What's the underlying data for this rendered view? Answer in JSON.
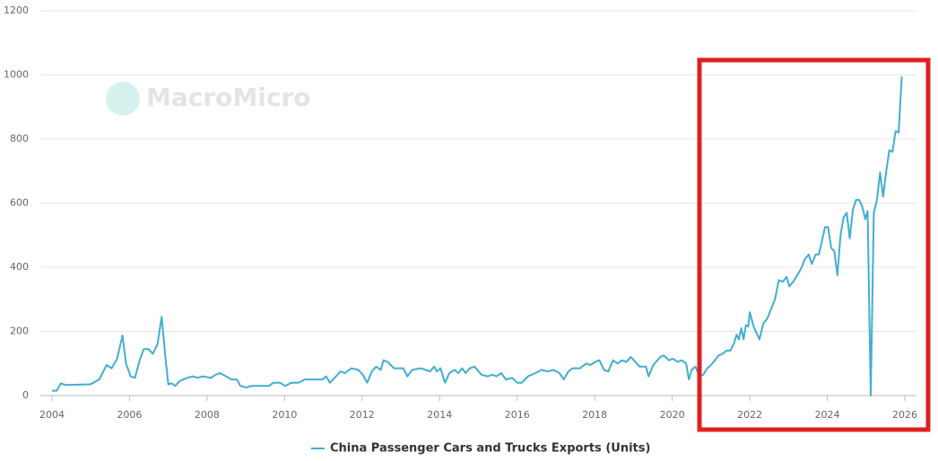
{
  "chart_data": {
    "type": "line",
    "watermark": "MacroMicro",
    "x": [
      2004.0,
      2004.12,
      2004.23,
      2004.35,
      2004.99,
      2005.22,
      2005.41,
      2005.54,
      2005.68,
      2005.82,
      2005.91,
      2006.03,
      2006.14,
      2006.26,
      2006.37,
      2006.49,
      2006.6,
      2006.72,
      2006.83,
      2006.93,
      2007.0,
      2007.09,
      2007.18,
      2007.29,
      2007.48,
      2007.64,
      2007.76,
      2007.89,
      2008.1,
      2008.22,
      2008.33,
      2008.49,
      2008.63,
      2008.77,
      2008.86,
      2009.02,
      2009.14,
      2009.6,
      2009.71,
      2009.88,
      2010.01,
      2010.18,
      2010.36,
      2010.52,
      2010.98,
      2011.07,
      2011.17,
      2011.33,
      2011.44,
      2011.56,
      2011.72,
      2011.9,
      2012.02,
      2012.13,
      2012.25,
      2012.36,
      2012.48,
      2012.55,
      2012.66,
      2012.82,
      2013.06,
      2013.17,
      2013.29,
      2013.52,
      2013.75,
      2013.86,
      2013.93,
      2014.02,
      2014.14,
      2014.25,
      2014.39,
      2014.48,
      2014.58,
      2014.67,
      2014.78,
      2014.9,
      2015.08,
      2015.24,
      2015.36,
      2015.47,
      2015.59,
      2015.71,
      2015.87,
      2016.0,
      2016.12,
      2016.28,
      2016.47,
      2016.63,
      2016.79,
      2016.93,
      2017.09,
      2017.2,
      2017.32,
      2017.43,
      2017.62,
      2017.78,
      2017.89,
      2018.01,
      2018.12,
      2018.24,
      2018.35,
      2018.47,
      2018.59,
      2018.7,
      2018.82,
      2018.93,
      2019.05,
      2019.16,
      2019.32,
      2019.39,
      2019.51,
      2019.69,
      2019.78,
      2019.92,
      2020.01,
      2020.15,
      2020.24,
      2020.36,
      2020.43,
      2020.5,
      2020.6,
      2020.7,
      2020.8,
      2020.9,
      2021.0,
      2021.1,
      2021.2,
      2021.3,
      2021.4,
      2021.5,
      2021.6,
      2021.66,
      2021.72,
      2021.78,
      2021.84,
      2021.9,
      2021.96,
      2022.0,
      2022.1,
      2022.25,
      2022.35,
      2022.45,
      2022.55,
      2022.65,
      2022.75,
      2022.85,
      2022.95,
      2023.02,
      2023.12,
      2023.22,
      2023.32,
      2023.42,
      2023.52,
      2023.6,
      2023.7,
      2023.78,
      2023.86,
      2023.94,
      2024.02,
      2024.1,
      2024.18,
      2024.26,
      2024.34,
      2024.42,
      2024.5,
      2024.58,
      2024.66,
      2024.74,
      2024.82,
      2024.9,
      2024.98,
      2025.04,
      2025.12,
      2025.2,
      2025.28,
      2025.36,
      2025.44,
      2025.52,
      2025.6,
      2025.68,
      2025.76,
      2025.84,
      2025.92
    ],
    "series": [
      {
        "name": "China Passenger Cars and Trucks Exports (Units)",
        "color": "#41aed0",
        "values": [
          15,
          15,
          38,
          33,
          35,
          50,
          95,
          85,
          115,
          187,
          100,
          60,
          55,
          110,
          145,
          145,
          130,
          160,
          245,
          115,
          35,
          38,
          30,
          45,
          55,
          60,
          55,
          60,
          55,
          65,
          70,
          60,
          50,
          50,
          30,
          25,
          30,
          30,
          40,
          40,
          30,
          40,
          40,
          50,
          50,
          60,
          40,
          60,
          75,
          70,
          85,
          80,
          65,
          40,
          75,
          90,
          80,
          110,
          105,
          85,
          85,
          60,
          80,
          85,
          75,
          90,
          75,
          85,
          40,
          70,
          80,
          70,
          85,
          70,
          85,
          90,
          65,
          60,
          65,
          60,
          70,
          50,
          55,
          40,
          40,
          60,
          70,
          80,
          75,
          80,
          70,
          50,
          75,
          85,
          85,
          100,
          95,
          105,
          110,
          80,
          75,
          110,
          100,
          110,
          105,
          120,
          105,
          90,
          90,
          60,
          95,
          120,
          125,
          110,
          115,
          105,
          110,
          100,
          50,
          80,
          90,
          60,
          65,
          85,
          95,
          110,
          125,
          130,
          140,
          140,
          165,
          190,
          175,
          210,
          175,
          220,
          215,
          260,
          215,
          175,
          225,
          240,
          270,
          300,
          360,
          355,
          370,
          340,
          355,
          375,
          395,
          425,
          440,
          410,
          440,
          440,
          480,
          525,
          525,
          460,
          450,
          375,
          500,
          555,
          570,
          490,
          580,
          610,
          610,
          590,
          550,
          575,
          0,
          570,
          610,
          695,
          620,
          700,
          765,
          760,
          825,
          820,
          995
        ]
      }
    ],
    "xlim": [
      2003.7,
      2026.3
    ],
    "xticks": [
      2004,
      2006,
      2008,
      2010,
      2012,
      2014,
      2016,
      2018,
      2020,
      2022,
      2024,
      2026
    ],
    "ylim": [
      0,
      1200
    ],
    "yticks": [
      0,
      200,
      400,
      600,
      800,
      1000,
      1200
    ],
    "grid": true
  }
}
